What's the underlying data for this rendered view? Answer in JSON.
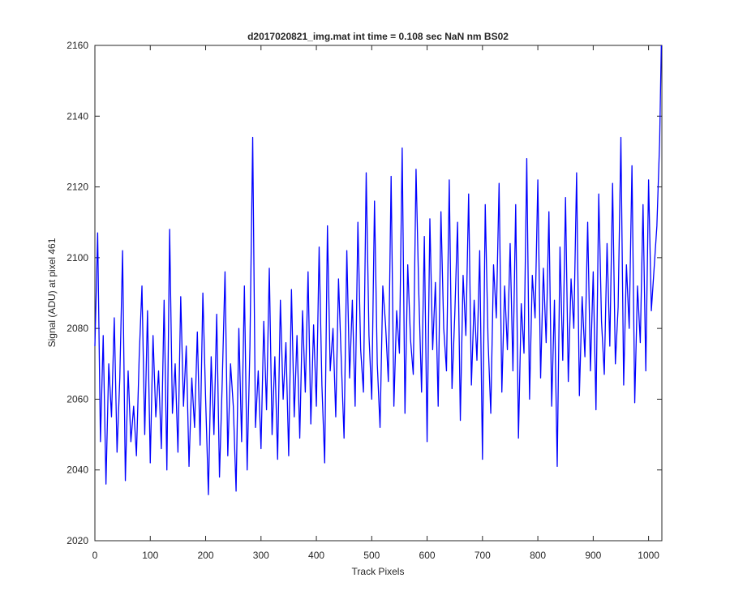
{
  "chart_data": {
    "type": "line",
    "title": "d2017020821_img.mat int time = 0.108 sec  NaN nm BS02",
    "xlabel": "Track Pixels",
    "ylabel": "Signal (ADU) at pixel 461",
    "xlim": [
      0,
      1024
    ],
    "ylim": [
      2020,
      2160
    ],
    "xticks": [
      0,
      100,
      200,
      300,
      400,
      500,
      600,
      700,
      800,
      900,
      1000
    ],
    "yticks": [
      2020,
      2040,
      2060,
      2080,
      2100,
      2120,
      2140,
      2160
    ],
    "grid": false,
    "x": [
      0,
      5,
      10,
      15,
      20,
      25,
      30,
      35,
      40,
      45,
      50,
      55,
      60,
      65,
      70,
      75,
      80,
      85,
      90,
      95,
      100,
      105,
      110,
      115,
      120,
      125,
      130,
      135,
      140,
      145,
      150,
      155,
      160,
      165,
      170,
      175,
      180,
      185,
      190,
      195,
      200,
      205,
      210,
      215,
      220,
      225,
      230,
      235,
      240,
      245,
      250,
      255,
      260,
      265,
      270,
      275,
      280,
      285,
      290,
      295,
      300,
      305,
      310,
      315,
      320,
      325,
      330,
      335,
      340,
      345,
      350,
      355,
      360,
      365,
      370,
      375,
      380,
      385,
      390,
      395,
      400,
      405,
      410,
      415,
      420,
      425,
      430,
      435,
      440,
      445,
      450,
      455,
      460,
      465,
      470,
      475,
      480,
      485,
      490,
      495,
      500,
      505,
      510,
      515,
      520,
      525,
      530,
      535,
      540,
      545,
      550,
      555,
      560,
      565,
      570,
      575,
      580,
      585,
      590,
      595,
      600,
      605,
      610,
      615,
      620,
      625,
      630,
      635,
      640,
      645,
      650,
      655,
      660,
      665,
      670,
      675,
      680,
      685,
      690,
      695,
      700,
      705,
      710,
      715,
      720,
      725,
      730,
      735,
      740,
      745,
      750,
      755,
      760,
      765,
      770,
      775,
      780,
      785,
      790,
      795,
      800,
      805,
      810,
      815,
      820,
      825,
      830,
      835,
      840,
      845,
      850,
      855,
      860,
      865,
      870,
      875,
      880,
      885,
      890,
      895,
      900,
      905,
      910,
      915,
      920,
      925,
      930,
      935,
      940,
      945,
      950,
      955,
      960,
      965,
      970,
      975,
      980,
      985,
      990,
      995,
      1000,
      1005,
      1010,
      1015,
      1020,
      1023
    ],
    "series": [
      {
        "name": "Signal",
        "color": "#0000ff",
        "values": [
          2075,
          2107,
          2048,
          2078,
          2036,
          2070,
          2055,
          2083,
          2045,
          2066,
          2102,
          2037,
          2068,
          2048,
          2058,
          2044,
          2072,
          2092,
          2050,
          2085,
          2042,
          2078,
          2055,
          2068,
          2046,
          2088,
          2040,
          2108,
          2056,
          2070,
          2045,
          2089,
          2058,
          2075,
          2041,
          2066,
          2052,
          2079,
          2047,
          2090,
          2060,
          2033,
          2072,
          2050,
          2084,
          2038,
          2065,
          2096,
          2044,
          2070,
          2058,
          2034,
          2080,
          2048,
          2092,
          2040,
          2075,
          2134,
          2052,
          2068,
          2046,
          2082,
          2057,
          2097,
          2050,
          2072,
          2043,
          2088,
          2060,
          2076,
          2044,
          2091,
          2055,
          2078,
          2049,
          2085,
          2062,
          2096,
          2053,
          2081,
          2058,
          2103,
          2064,
          2042,
          2109,
          2068,
          2080,
          2055,
          2094,
          2071,
          2049,
          2102,
          2066,
          2088,
          2058,
          2110,
          2074,
          2062,
          2124,
          2078,
          2060,
          2116,
          2070,
          2052,
          2092,
          2081,
          2065,
          2123,
          2058,
          2085,
          2073,
          2131,
          2056,
          2098,
          2077,
          2067,
          2125,
          2090,
          2062,
          2106,
          2048,
          2111,
          2074,
          2093,
          2058,
          2113,
          2080,
          2068,
          2122,
          2063,
          2084,
          2110,
          2054,
          2095,
          2078,
          2118,
          2064,
          2088,
          2071,
          2102,
          2043,
          2115,
          2077,
          2056,
          2098,
          2083,
          2121,
          2062,
          2092,
          2074,
          2104,
          2068,
          2115,
          2049,
          2087,
          2073,
          2128,
          2060,
          2095,
          2083,
          2122,
          2066,
          2097,
          2076,
          2113,
          2058,
          2088,
          2041,
          2103,
          2071,
          2117,
          2065,
          2094,
          2080,
          2124,
          2061,
          2089,
          2072,
          2110,
          2068,
          2096,
          2057,
          2118,
          2082,
          2067,
          2104,
          2075,
          2121,
          2070,
          2086,
          2134,
          2064,
          2098,
          2080,
          2126,
          2059,
          2092,
          2076,
          2115,
          2068,
          2122,
          2085,
          2097,
          2109,
          2133,
          2160
        ]
      }
    ]
  }
}
